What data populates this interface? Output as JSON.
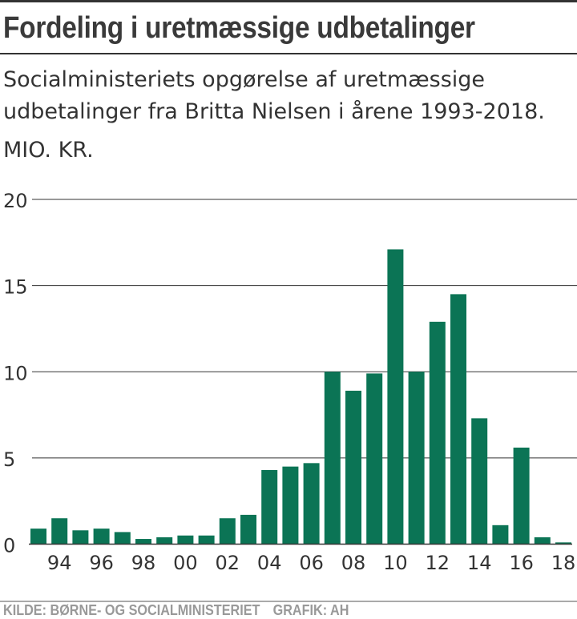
{
  "header": {
    "title": "Fordeling i uretmæssige udbetalinger",
    "subtitle": "Socialministeriets opgørelse af uretmæssige udbetalinger fra Britta Nielsen i årene 1993-2018.",
    "unit": "MIO. KR."
  },
  "footer": {
    "source": "KILDE: BØRNE- OG SOCIALMINISTERIET",
    "credit": "GRAFIK: AH"
  },
  "colors": {
    "bar": "#0b7455",
    "grid": "#333333",
    "text": "#333333"
  },
  "chart_data": {
    "type": "bar",
    "title": "Fordeling i uretmæssige udbetalinger",
    "ylabel": "MIO. KR.",
    "xlabel": "",
    "ylim": [
      0,
      20
    ],
    "yticks": [
      0,
      5,
      10,
      15,
      20
    ],
    "categories": [
      "1993",
      "1994",
      "1995",
      "1996",
      "1997",
      "1998",
      "1999",
      "2000",
      "2001",
      "2002",
      "2003",
      "2004",
      "2005",
      "2006",
      "2007",
      "2008",
      "2009",
      "2010",
      "2011",
      "2012",
      "2013",
      "2014",
      "2015",
      "2016",
      "2017",
      "2018"
    ],
    "xtick_labels": {
      "1994": "94",
      "1996": "96",
      "1998": "98",
      "2000": "00",
      "2002": "02",
      "2004": "04",
      "2006": "06",
      "2008": "08",
      "2010": "10",
      "2012": "12",
      "2014": "14",
      "2016": "16",
      "2018": "18"
    },
    "values": [
      0.9,
      1.5,
      0.8,
      0.9,
      0.7,
      0.3,
      0.4,
      0.5,
      0.5,
      1.5,
      1.7,
      4.3,
      4.5,
      4.7,
      10.0,
      8.9,
      9.9,
      17.1,
      10.0,
      12.9,
      14.5,
      7.3,
      1.1,
      5.6,
      0.4,
      0.1
    ],
    "grid": true,
    "legend": "none"
  }
}
